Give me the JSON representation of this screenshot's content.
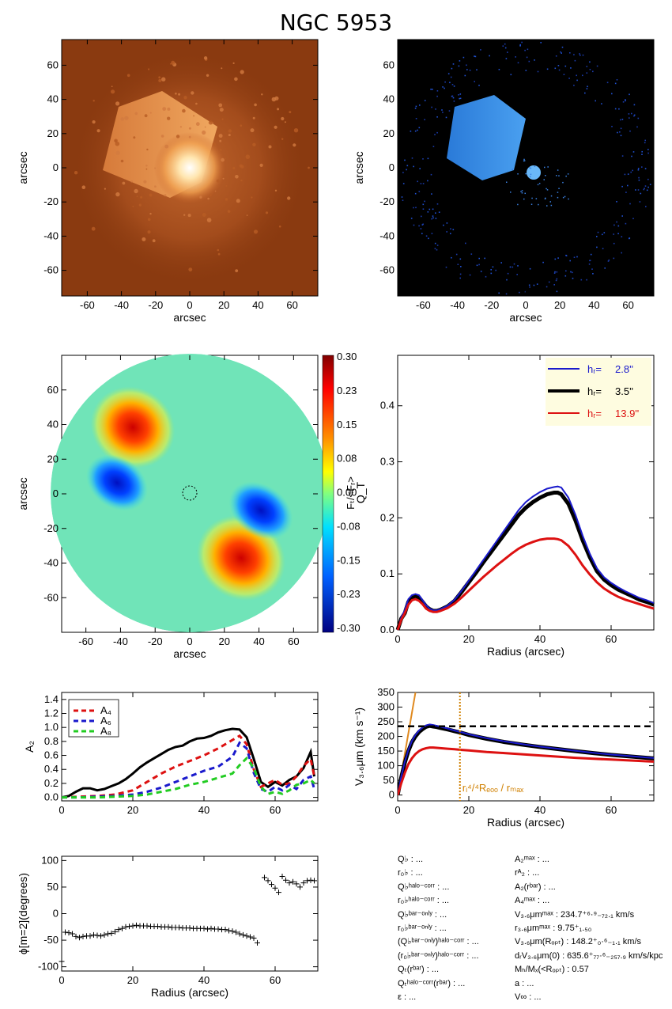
{
  "title": "NGC 5953",
  "images": {
    "xlabel": "arcsec",
    "ylabel": "arcsec",
    "ticks": [
      "-60",
      "-40",
      "-20",
      "0",
      "20",
      "40",
      "60"
    ]
  },
  "colorbar": {
    "label": "Fₜ/<Fᵣ>",
    "ticks": [
      "0.30",
      "0.23",
      "0.15",
      "0.08",
      "0.00",
      "-0.08",
      "-0.15",
      "-0.23",
      "-0.30"
    ]
  },
  "chart_data": [
    {
      "type": "line",
      "panel": "QT",
      "xlabel": "Radius (arcsec)",
      "ylabel": "Q_T",
      "xlim": [
        0,
        72
      ],
      "ylim": [
        0,
        0.49
      ],
      "xticks": [
        "0",
        "20",
        "40",
        "60"
      ],
      "yticks": [
        "0.0",
        "0.1",
        "0.2",
        "0.3",
        "0.4"
      ],
      "legend": {
        "placement": "top-right",
        "entries": [
          {
            "label": "hᵣ=",
            "value": "2.8''",
            "color": "#1a1acc"
          },
          {
            "label": "hᵣ=",
            "value": "3.5''",
            "color": "#000000"
          },
          {
            "label": "hᵣ=",
            "value": "13.9''",
            "color": "#dd1111"
          }
        ]
      },
      "x": [
        0,
        1,
        2,
        3,
        4,
        5,
        6,
        7,
        8,
        9,
        10,
        11,
        12,
        14,
        16,
        18,
        20,
        22,
        24,
        26,
        28,
        30,
        32,
        34,
        36,
        38,
        40,
        42,
        44,
        45,
        46,
        48,
        50,
        52,
        54,
        56,
        58,
        60,
        62,
        64,
        66,
        68,
        70,
        72
      ],
      "series": [
        {
          "color": "#000000",
          "width": 5,
          "values": [
            0.0,
            0.02,
            0.03,
            0.05,
            0.058,
            0.06,
            0.058,
            0.05,
            0.042,
            0.037,
            0.034,
            0.034,
            0.036,
            0.042,
            0.052,
            0.068,
            0.085,
            0.102,
            0.12,
            0.137,
            0.154,
            0.171,
            0.188,
            0.205,
            0.218,
            0.228,
            0.236,
            0.242,
            0.245,
            0.245,
            0.242,
            0.225,
            0.195,
            0.16,
            0.13,
            0.105,
            0.09,
            0.08,
            0.072,
            0.066,
            0.06,
            0.054,
            0.05,
            0.045
          ]
        },
        {
          "color": "#1a1acc",
          "width": 2,
          "values": [
            0.0,
            0.022,
            0.035,
            0.055,
            0.062,
            0.064,
            0.062,
            0.053,
            0.044,
            0.038,
            0.035,
            0.035,
            0.037,
            0.043,
            0.054,
            0.07,
            0.088,
            0.106,
            0.124,
            0.142,
            0.16,
            0.178,
            0.196,
            0.214,
            0.228,
            0.238,
            0.246,
            0.252,
            0.255,
            0.256,
            0.254,
            0.236,
            0.205,
            0.168,
            0.136,
            0.11,
            0.094,
            0.084,
            0.076,
            0.069,
            0.063,
            0.057,
            0.053,
            0.048
          ]
        },
        {
          "color": "#dd1111",
          "width": 3,
          "values": [
            0.0,
            0.018,
            0.03,
            0.045,
            0.053,
            0.055,
            0.052,
            0.046,
            0.038,
            0.034,
            0.032,
            0.032,
            0.034,
            0.039,
            0.047,
            0.058,
            0.07,
            0.082,
            0.094,
            0.105,
            0.116,
            0.126,
            0.136,
            0.145,
            0.152,
            0.157,
            0.161,
            0.163,
            0.163,
            0.162,
            0.16,
            0.15,
            0.134,
            0.115,
            0.099,
            0.085,
            0.074,
            0.066,
            0.059,
            0.054,
            0.05,
            0.046,
            0.042,
            0.038
          ]
        }
      ]
    },
    {
      "type": "line",
      "panel": "A2",
      "ylabel": "A₂",
      "xlim": [
        0,
        72
      ],
      "ylim": [
        -0.05,
        1.5
      ],
      "xticks": [
        "0",
        "20",
        "40",
        "60"
      ],
      "yticks": [
        "0.0",
        "0.2",
        "0.4",
        "0.6",
        "0.8",
        "1.0",
        "1.2",
        "1.4"
      ],
      "legend": {
        "placement": "top-left",
        "entries": [
          {
            "label": "A₄",
            "color": "#dd1111"
          },
          {
            "label": "A₆",
            "color": "#1a1acc"
          },
          {
            "label": "A₈",
            "color": "#22cc22"
          }
        ]
      },
      "series": [
        {
          "color": "#000000",
          "width": 3,
          "dash": "",
          "x": [
            0,
            2,
            4,
            6,
            8,
            10,
            12,
            14,
            16,
            18,
            20,
            22,
            24,
            26,
            28,
            30,
            32,
            34,
            36,
            38,
            40,
            42,
            44,
            46,
            48,
            50,
            52,
            54,
            56,
            58,
            60,
            62,
            64,
            66,
            68,
            70,
            71
          ],
          "values": [
            0.0,
            0.02,
            0.08,
            0.13,
            0.13,
            0.1,
            0.12,
            0.16,
            0.2,
            0.26,
            0.34,
            0.43,
            0.5,
            0.56,
            0.62,
            0.68,
            0.72,
            0.74,
            0.8,
            0.84,
            0.85,
            0.88,
            0.93,
            0.96,
            0.98,
            0.97,
            0.86,
            0.55,
            0.22,
            0.15,
            0.22,
            0.17,
            0.25,
            0.3,
            0.42,
            0.65,
            0.3
          ]
        },
        {
          "color": "#dd1111",
          "width": 3,
          "dash": "7,5",
          "x": [
            0,
            5,
            10,
            15,
            20,
            24,
            28,
            32,
            36,
            40,
            44,
            48,
            50,
            52,
            54,
            56,
            58,
            60,
            62,
            64,
            66,
            68,
            70,
            71
          ],
          "values": [
            0.0,
            0.01,
            0.02,
            0.04,
            0.1,
            0.22,
            0.34,
            0.44,
            0.52,
            0.6,
            0.7,
            0.82,
            0.88,
            0.76,
            0.4,
            0.15,
            0.2,
            0.25,
            0.18,
            0.2,
            0.3,
            0.45,
            0.55,
            0.3
          ]
        },
        {
          "color": "#1a1acc",
          "width": 3,
          "dash": "7,5",
          "x": [
            0,
            5,
            10,
            15,
            20,
            24,
            28,
            32,
            36,
            40,
            44,
            48,
            50,
            52,
            54,
            56,
            58,
            60,
            62,
            64,
            66,
            68,
            70,
            71
          ],
          "values": [
            0.0,
            0.0,
            0.01,
            0.02,
            0.04,
            0.08,
            0.14,
            0.22,
            0.3,
            0.38,
            0.44,
            0.58,
            0.78,
            0.7,
            0.35,
            0.12,
            0.08,
            0.15,
            0.1,
            0.18,
            0.12,
            0.25,
            0.3,
            0.12
          ]
        },
        {
          "color": "#22cc22",
          "width": 3,
          "dash": "7,5",
          "x": [
            0,
            5,
            10,
            15,
            20,
            24,
            28,
            32,
            36,
            40,
            44,
            48,
            50,
            52,
            54,
            56,
            58,
            60,
            62,
            64,
            66,
            68,
            70,
            71
          ],
          "values": [
            0.0,
            0.0,
            0.0,
            0.01,
            0.02,
            0.04,
            0.08,
            0.12,
            0.18,
            0.22,
            0.28,
            0.34,
            0.46,
            0.56,
            0.42,
            0.15,
            0.05,
            0.08,
            0.05,
            0.1,
            0.18,
            0.2,
            0.25,
            0.2
          ]
        }
      ]
    },
    {
      "type": "line",
      "panel": "rotation-curve",
      "xlabel": "Radius (arcsec)",
      "ylabel": "V₃.₆μm (km s⁻¹)",
      "xlim": [
        0,
        72
      ],
      "ylim": [
        -20,
        350
      ],
      "xticks": [
        "0",
        "20",
        "40",
        "60"
      ],
      "yticks": [
        "0",
        "50",
        "100",
        "150",
        "200",
        "250",
        "300",
        "350"
      ],
      "vmax_level": 234.7,
      "vline_x": 17.5,
      "vline_label": "rᵢ⁴/⁴Rₑₒₒ / rₘₐₓ",
      "solid_body": {
        "x": [
          0,
          5
        ],
        "values": [
          0,
          350
        ]
      },
      "x": [
        0,
        1,
        2,
        3,
        4,
        5,
        6,
        7,
        8,
        9,
        10,
        11,
        12,
        14,
        16,
        18,
        20,
        25,
        30,
        35,
        40,
        45,
        50,
        55,
        60,
        65,
        70,
        72
      ],
      "series": [
        {
          "color": "#000000",
          "width": 5,
          "values": [
            0,
            60,
            110,
            150,
            180,
            200,
            215,
            225,
            233,
            236,
            234,
            232,
            229,
            224,
            218,
            212,
            205,
            192,
            181,
            172,
            164,
            157,
            150,
            143,
            137,
            132,
            127,
            125
          ]
        },
        {
          "color": "#1a1acc",
          "width": 2,
          "values": [
            0,
            62,
            113,
            154,
            184,
            205,
            220,
            230,
            238,
            241,
            239,
            236,
            233,
            227,
            220,
            214,
            207,
            194,
            183,
            174,
            165,
            158,
            151,
            144,
            138,
            133,
            128,
            126
          ]
        },
        {
          "color": "#dd1111",
          "width": 3,
          "values": [
            0,
            40,
            75,
            105,
            125,
            140,
            150,
            156,
            160,
            162,
            162,
            161,
            160,
            158,
            156,
            154,
            152,
            147,
            143,
            139,
            135,
            131,
            127,
            124,
            121,
            118,
            115,
            114
          ]
        }
      ]
    },
    {
      "type": "scatter",
      "panel": "phase",
      "xlabel": "Radius (arcsec)",
      "ylabel": "ϕ[m=2](degrees)",
      "xlim": [
        0,
        72
      ],
      "ylim": [
        -108,
        108
      ],
      "xticks": [
        "0",
        "20",
        "40",
        "60"
      ],
      "yticks": [
        "100",
        "50",
        "0",
        "-50",
        "-100"
      ],
      "x": [
        0,
        1,
        2,
        3,
        4,
        5,
        6,
        7,
        8,
        9,
        10,
        11,
        12,
        13,
        14,
        15,
        16,
        17,
        18,
        19,
        20,
        21,
        22,
        23,
        24,
        25,
        26,
        27,
        28,
        29,
        30,
        31,
        32,
        33,
        34,
        35,
        36,
        37,
        38,
        39,
        40,
        41,
        42,
        43,
        44,
        45,
        46,
        47,
        48,
        49,
        50,
        51,
        52,
        53,
        54,
        55,
        57,
        58,
        59,
        60,
        61,
        62,
        63,
        64,
        65,
        66,
        67,
        68,
        69,
        70,
        71
      ],
      "values": [
        -90,
        -35,
        -36,
        -38,
        -43,
        -45,
        -43,
        -42,
        -42,
        -40,
        -41,
        -42,
        -40,
        -38,
        -37,
        -34,
        -30,
        -28,
        -25,
        -24,
        -23,
        -22,
        -23,
        -23,
        -23,
        -24,
        -24,
        -24,
        -25,
        -25,
        -25,
        -26,
        -26,
        -26,
        -27,
        -27,
        -27,
        -28,
        -28,
        -28,
        -28,
        -29,
        -28,
        -29,
        -29,
        -30,
        -30,
        -32,
        -33,
        -35,
        -38,
        -40,
        -42,
        -44,
        -46,
        -55,
        68,
        62,
        55,
        48,
        40,
        70,
        63,
        58,
        60,
        56,
        50,
        58,
        62,
        63,
        62
      ]
    }
  ],
  "params_left": [
    "Q♭ : ...",
    "r₀♭ : ...",
    "Q♭ʰᵃˡᵒ⁻ᶜᵒʳʳ : ...",
    "r₀♭ʰᵃˡᵒ⁻ᶜᵒʳʳ : ...",
    "Q♭ᵇᵃʳ⁻ᵒⁿˡʸ : ...",
    "r₀♭ᵇᵃʳ⁻ᵒⁿˡʸ : ...",
    "(Q♭ᵇᵃʳ⁻ᵒⁿˡʸ)ʰᵃˡᵒ⁻ᶜᵒʳʳ : ...",
    "(r₀♭ᵇᵃʳ⁻ᵒⁿˡʸ)ʰᵃˡᵒ⁻ᶜᵒʳʳ : ...",
    "Qₜ(rᵇᵃʳ) : ...",
    "Qₜʰᵃˡᵒ⁻ᶜᵒʳʳ(rᵇᵃʳ) : ...",
    "ε : ..."
  ],
  "params_right": [
    "A₂ᵐᵃˣ : ...",
    "rᴬ₂ : ...",
    "A₂(rᵇᵃʳ) : ...",
    "A₄ᵐᵃˣ : ...",
    "V₃.₆μmᵐᵃˣ : 234.7⁺⁶·⁹₋₇₂.₁ km/s",
    "r₃.₆μmᵐᵃˣ : 9.75⁺₁.₅₀",
    "V₃.₆μm(Rₒₚₜ) : 148.2⁺₀·⁶₋₁.₁ km/s",
    "dᵣV₃.₆μm(0) : 635.6⁺₇₇·⁶₋₂₅₇.₉ km/s/kpc",
    "Mₕ/Mₓ(<Rₒₚₜ) : 0.57",
    "a : ...",
    "V∞ : ..."
  ]
}
